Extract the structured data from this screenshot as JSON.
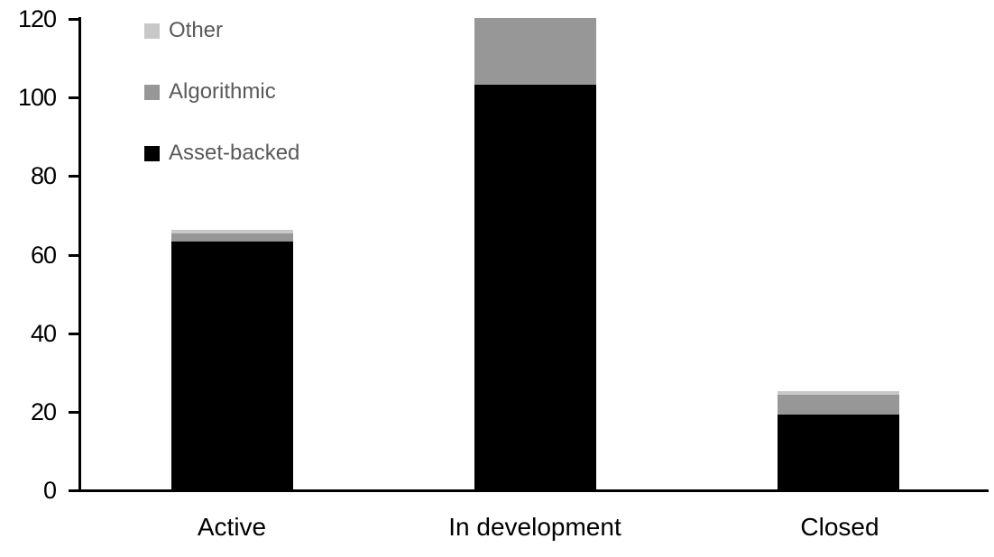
{
  "chart_data": {
    "type": "bar",
    "stacked": true,
    "title": "",
    "xlabel": "",
    "ylabel": "",
    "categories": [
      "Active",
      "In development",
      "Closed"
    ],
    "series": [
      {
        "name": "Asset-backed",
        "color": "#000000",
        "values": [
          63,
          103,
          19
        ]
      },
      {
        "name": "Algorithmic",
        "color": "#979797",
        "values": [
          2,
          17,
          5
        ]
      },
      {
        "name": "Other",
        "color": "#c8c8c8",
        "values": [
          1,
          0,
          1
        ]
      }
    ],
    "totals": [
      66,
      120,
      25
    ],
    "ylim": [
      0,
      120
    ],
    "ytick_step": 20,
    "yticks": [
      0,
      20,
      40,
      60,
      80,
      100,
      120
    ],
    "grid": false,
    "legend_position": "top-left",
    "legend_order": [
      "Other",
      "Algorithmic",
      "Asset-backed"
    ]
  },
  "colors": {
    "background": "#ffffff",
    "axis": "#000000",
    "tick_label": "#000000",
    "category_label": "#000000",
    "legend_text": "#595959"
  }
}
